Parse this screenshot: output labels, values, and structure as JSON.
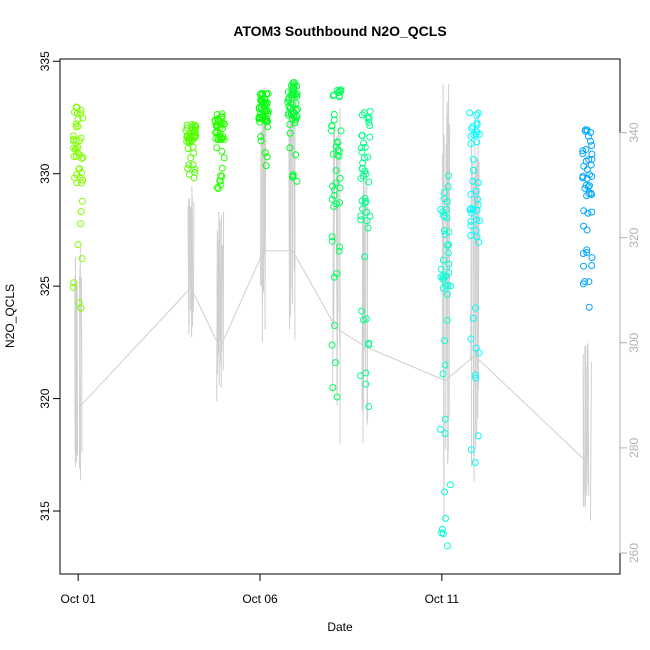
{
  "chart_data": {
    "type": "scatter",
    "title": "ATOM3 Southbound N2O_QCLS",
    "xlabel": "Date",
    "ylabel": "N2O_QCLS",
    "x_ticks": [
      "Oct 01",
      "Oct 06",
      "Oct 11"
    ],
    "x_tick_days": [
      1,
      6,
      11
    ],
    "xlim_days": [
      0.5,
      15.9
    ],
    "ylim": [
      312.2,
      335.1
    ],
    "y_ticks": [
      315,
      320,
      325,
      330,
      335
    ],
    "right_axis": {
      "ylim": [
        256,
        354
      ],
      "ticks": [
        260,
        280,
        300,
        320,
        340
      ],
      "color": "#b0b0b0"
    },
    "flights": [
      {
        "day": 1.0,
        "ymin": 323.3,
        "ymax": 333.1,
        "color": "#80ff00",
        "alt_min": 270,
        "alt_max": 320
      },
      {
        "day": 4.1,
        "ymin": 329.4,
        "ymax": 332.2,
        "color": "#55ff00",
        "alt_min": 300,
        "alt_max": 330
      },
      {
        "day": 4.9,
        "ymin": 329.3,
        "ymax": 332.7,
        "color": "#2bff00",
        "alt_min": 285,
        "alt_max": 325
      },
      {
        "day": 6.1,
        "ymin": 329.9,
        "ymax": 333.6,
        "color": "#05ff0c",
        "alt_min": 300,
        "alt_max": 350
      },
      {
        "day": 6.9,
        "ymin": 329.5,
        "ymax": 334.2,
        "color": "#00ff2d",
        "alt_min": 300,
        "alt_max": 350
      },
      {
        "day": 8.1,
        "ymin": 318.9,
        "ymax": 333.9,
        "color": "#00ff59",
        "alt_min": 280,
        "alt_max": 345
      },
      {
        "day": 8.9,
        "ymin": 319.0,
        "ymax": 332.8,
        "color": "#00ff89",
        "alt_min": 280,
        "alt_max": 335
      },
      {
        "day": 11.1,
        "ymin": 312.8,
        "ymax": 330.0,
        "color": "#00ffd5",
        "alt_min": 262,
        "alt_max": 350
      },
      {
        "day": 11.9,
        "ymin": 316.5,
        "ymax": 332.8,
        "color": "#00fbff",
        "alt_min": 272,
        "alt_max": 345
      },
      {
        "day": 15.0,
        "ymin": 323.5,
        "ymax": 332.1,
        "color": "#00a6ff",
        "alt_min": 265,
        "alt_max": 300
      }
    ],
    "grid": false
  }
}
